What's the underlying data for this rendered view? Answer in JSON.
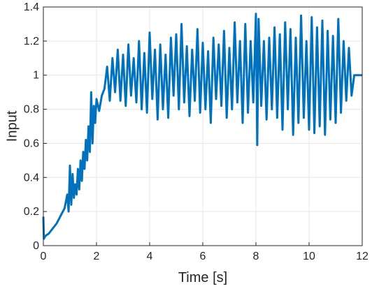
{
  "chart_data": {
    "type": "line",
    "xlabel": "Time [s]",
    "ylabel": "Input",
    "xlim": [
      0,
      12
    ],
    "ylim": [
      0,
      1.4
    ],
    "xticks": [
      "0",
      "2",
      "4",
      "6",
      "8",
      "10",
      "12"
    ],
    "yticks": [
      "0",
      "0.2",
      "0.4",
      "0.6",
      "0.8",
      "1",
      "1.2",
      "1.4"
    ],
    "grid": true,
    "series_color": "#0072BD",
    "series": [
      {
        "x": [
          0,
          0.02,
          0.05,
          0.1,
          0.2,
          0.3,
          0.4,
          0.5,
          0.6,
          0.7,
          0.8,
          0.9,
          0.95,
          1.0,
          1.05,
          1.1,
          1.15,
          1.2,
          1.25,
          1.3,
          1.35,
          1.4,
          1.45,
          1.5,
          1.55,
          1.6,
          1.65,
          1.7,
          1.75,
          1.8,
          1.85,
          1.9,
          1.95,
          2.0,
          2.1,
          2.2,
          2.3,
          2.4,
          2.5,
          2.6,
          2.7,
          2.8,
          2.9,
          3.0,
          3.1,
          3.2,
          3.3,
          3.4,
          3.5,
          3.6,
          3.7,
          3.8,
          3.9,
          4.0,
          4.1,
          4.2,
          4.3,
          4.4,
          4.5,
          4.6,
          4.7,
          4.8,
          4.9,
          5.0,
          5.1,
          5.2,
          5.3,
          5.4,
          5.5,
          5.6,
          5.7,
          5.8,
          5.9,
          6.0,
          6.1,
          6.2,
          6.3,
          6.4,
          6.5,
          6.6,
          6.7,
          6.8,
          6.9,
          7.0,
          7.1,
          7.2,
          7.3,
          7.4,
          7.5,
          7.6,
          7.7,
          7.8,
          7.9,
          8.0,
          8.05,
          8.1,
          8.2,
          8.3,
          8.4,
          8.5,
          8.6,
          8.7,
          8.8,
          8.9,
          9.0,
          9.1,
          9.2,
          9.3,
          9.4,
          9.5,
          9.6,
          9.7,
          9.8,
          9.9,
          10.0,
          10.1,
          10.2,
          10.3,
          10.4,
          10.5,
          10.6,
          10.7,
          10.8,
          10.9,
          11.0,
          11.1,
          11.2,
          11.3,
          11.4,
          11.5,
          11.6,
          11.7,
          11.8,
          11.9,
          12.0
        ],
        "y": [
          0.17,
          0.04,
          0.05,
          0.06,
          0.07,
          0.09,
          0.11,
          0.13,
          0.16,
          0.19,
          0.22,
          0.3,
          0.2,
          0.47,
          0.24,
          0.42,
          0.28,
          0.36,
          0.3,
          0.45,
          0.33,
          0.5,
          0.38,
          0.55,
          0.45,
          0.62,
          0.5,
          0.7,
          0.55,
          0.9,
          0.6,
          0.82,
          0.72,
          0.86,
          0.79,
          0.88,
          0.92,
          1.05,
          0.85,
          1.1,
          0.9,
          1.15,
          0.85,
          1.12,
          0.82,
          1.18,
          0.88,
          1.1,
          0.84,
          1.2,
          0.8,
          1.13,
          0.78,
          1.25,
          0.86,
          1.15,
          0.74,
          1.18,
          0.8,
          1.12,
          0.75,
          1.22,
          0.88,
          1.24,
          0.8,
          1.3,
          0.84,
          1.17,
          0.76,
          1.15,
          0.85,
          1.27,
          0.78,
          1.19,
          0.8,
          1.14,
          0.72,
          1.22,
          0.86,
          1.18,
          0.82,
          1.26,
          0.75,
          1.16,
          0.8,
          1.31,
          0.84,
          1.2,
          0.72,
          1.3,
          0.78,
          1.2,
          0.84,
          1.36,
          0.59,
          1.33,
          0.82,
          1.2,
          0.74,
          1.22,
          0.8,
          1.28,
          0.75,
          1.24,
          0.68,
          1.31,
          0.8,
          1.27,
          0.65,
          1.22,
          0.72,
          1.35,
          0.75,
          1.2,
          0.68,
          1.34,
          0.66,
          1.28,
          0.7,
          1.32,
          0.65,
          1.26,
          0.74,
          1.23,
          0.72,
          1.33,
          0.78,
          1.2,
          0.85,
          1.16,
          0.88,
          1.0,
          1.0,
          1.0,
          1.0
        ]
      }
    ]
  }
}
